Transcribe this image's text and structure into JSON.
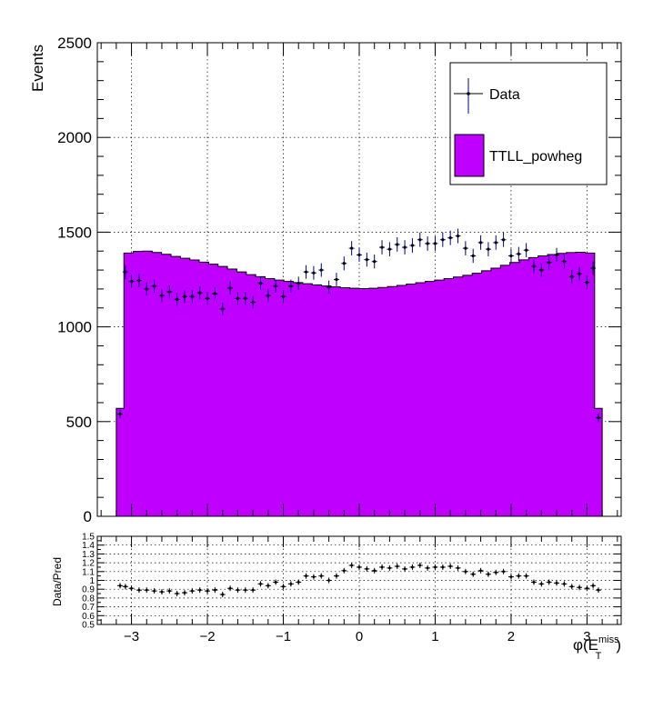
{
  "chart_data": [
    {
      "type": "histogram",
      "ylabel": "Events",
      "ylim": [
        0,
        2500
      ],
      "xlim": [
        -3.45,
        3.45
      ],
      "y_ticks": [
        "0",
        "500",
        "1000",
        "1500",
        "2000",
        "2500"
      ],
      "grid": true,
      "legend": {
        "position": "top-right",
        "entries": [
          "Data",
          "TTLL_powheg"
        ]
      },
      "colors": {
        "mc_fill": "#bf00ff",
        "data_marker": "#000000",
        "data_error": "#00008b"
      },
      "mc": {
        "name": "TTLL_powheg",
        "bins": [
          {
            "x0": -3.2,
            "x1": -3.1,
            "y": 570
          },
          {
            "x0": -3.1,
            "x1": 3.1,
            "y": [
              1390,
              1398,
              1400,
              1393,
              1383,
              1372,
              1362,
              1353,
              1342,
              1331,
              1319,
              1305,
              1290,
              1276,
              1265,
              1255,
              1247,
              1240,
              1234,
              1228,
              1222,
              1216,
              1211,
              1207,
              1204,
              1202,
              1204,
              1208,
              1213,
              1219,
              1226,
              1233,
              1240,
              1247,
              1255,
              1263,
              1272,
              1283,
              1296,
              1310,
              1325,
              1340,
              1354,
              1366,
              1375,
              1382,
              1388,
              1392,
              1394,
              1390
            ]
          },
          {
            "x0": 3.1,
            "x1": 3.2,
            "y": 570
          }
        ]
      },
      "data": {
        "name": "Data",
        "points": [
          {
            "x": -3.15,
            "y": 540
          },
          {
            "x": -3.08,
            "y": 1290
          },
          {
            "x": -3.0,
            "y": 1240
          },
          {
            "x": -2.9,
            "y": 1245
          },
          {
            "x": -2.8,
            "y": 1200
          },
          {
            "x": -2.7,
            "y": 1215
          },
          {
            "x": -2.6,
            "y": 1165
          },
          {
            "x": -2.5,
            "y": 1185
          },
          {
            "x": -2.4,
            "y": 1145
          },
          {
            "x": -2.3,
            "y": 1160
          },
          {
            "x": -2.2,
            "y": 1160
          },
          {
            "x": -2.1,
            "y": 1180
          },
          {
            "x": -2.0,
            "y": 1150
          },
          {
            "x": -1.9,
            "y": 1175
          },
          {
            "x": -1.8,
            "y": 1095
          },
          {
            "x": -1.7,
            "y": 1205
          },
          {
            "x": -1.6,
            "y": 1150
          },
          {
            "x": -1.5,
            "y": 1150
          },
          {
            "x": -1.4,
            "y": 1130
          },
          {
            "x": -1.3,
            "y": 1230
          },
          {
            "x": -1.2,
            "y": 1165
          },
          {
            "x": -1.1,
            "y": 1215
          },
          {
            "x": -1.0,
            "y": 1160
          },
          {
            "x": -0.9,
            "y": 1215
          },
          {
            "x": -0.8,
            "y": 1230
          },
          {
            "x": -0.7,
            "y": 1290
          },
          {
            "x": -0.6,
            "y": 1285
          },
          {
            "x": -0.5,
            "y": 1300
          },
          {
            "x": -0.4,
            "y": 1210
          },
          {
            "x": -0.3,
            "y": 1250
          },
          {
            "x": -0.2,
            "y": 1335
          },
          {
            "x": -0.1,
            "y": 1415
          },
          {
            "x": 0.0,
            "y": 1380
          },
          {
            "x": 0.1,
            "y": 1355
          },
          {
            "x": 0.2,
            "y": 1345
          },
          {
            "x": 0.3,
            "y": 1420
          },
          {
            "x": 0.4,
            "y": 1410
          },
          {
            "x": 0.5,
            "y": 1435
          },
          {
            "x": 0.6,
            "y": 1420
          },
          {
            "x": 0.7,
            "y": 1430
          },
          {
            "x": 0.8,
            "y": 1460
          },
          {
            "x": 0.9,
            "y": 1440
          },
          {
            "x": 1.0,
            "y": 1440
          },
          {
            "x": 1.1,
            "y": 1460
          },
          {
            "x": 1.2,
            "y": 1470
          },
          {
            "x": 1.3,
            "y": 1480
          },
          {
            "x": 1.4,
            "y": 1415
          },
          {
            "x": 1.5,
            "y": 1375
          },
          {
            "x": 1.6,
            "y": 1445
          },
          {
            "x": 1.7,
            "y": 1410
          },
          {
            "x": 1.8,
            "y": 1445
          },
          {
            "x": 1.9,
            "y": 1460
          },
          {
            "x": 2.0,
            "y": 1375
          },
          {
            "x": 2.1,
            "y": 1385
          },
          {
            "x": 2.2,
            "y": 1405
          },
          {
            "x": 2.3,
            "y": 1320
          },
          {
            "x": 2.4,
            "y": 1300
          },
          {
            "x": 2.5,
            "y": 1340
          },
          {
            "x": 2.6,
            "y": 1380
          },
          {
            "x": 2.7,
            "y": 1345
          },
          {
            "x": 2.8,
            "y": 1265
          },
          {
            "x": 2.9,
            "y": 1280
          },
          {
            "x": 3.0,
            "y": 1235
          },
          {
            "x": 3.08,
            "y": 1310
          },
          {
            "x": 3.15,
            "y": 520
          }
        ]
      }
    },
    {
      "type": "scatter",
      "ylabel": "Data/Pred",
      "xlabel": "φ(E",
      "xlabel_super": "miss",
      "xlabel_sub": "T",
      "xlabel_close": ")",
      "ylim": [
        0.5,
        1.5
      ],
      "xlim": [
        -3.45,
        3.45
      ],
      "x_ticks": [
        "−3",
        "−2",
        "−1",
        "0",
        "1",
        "2",
        "3"
      ],
      "y_ticks": [
        "0.5",
        "0.6",
        "0.7",
        "0.8",
        "0.9",
        "1",
        "1.1",
        "1.2",
        "1.3",
        "1.4",
        "1.5"
      ],
      "grid": true,
      "points": [
        {
          "x": -3.15,
          "y": 0.94
        },
        {
          "x": -3.08,
          "y": 0.93
        },
        {
          "x": -3.0,
          "y": 0.91
        },
        {
          "x": -2.9,
          "y": 0.89
        },
        {
          "x": -2.8,
          "y": 0.89
        },
        {
          "x": -2.7,
          "y": 0.88
        },
        {
          "x": -2.6,
          "y": 0.87
        },
        {
          "x": -2.5,
          "y": 0.88
        },
        {
          "x": -2.4,
          "y": 0.85
        },
        {
          "x": -2.3,
          "y": 0.86
        },
        {
          "x": -2.2,
          "y": 0.88
        },
        {
          "x": -2.1,
          "y": 0.89
        },
        {
          "x": -2.0,
          "y": 0.88
        },
        {
          "x": -1.9,
          "y": 0.89
        },
        {
          "x": -1.8,
          "y": 0.84
        },
        {
          "x": -1.7,
          "y": 0.91
        },
        {
          "x": -1.6,
          "y": 0.89
        },
        {
          "x": -1.5,
          "y": 0.89
        },
        {
          "x": -1.4,
          "y": 0.89
        },
        {
          "x": -1.3,
          "y": 0.96
        },
        {
          "x": -1.2,
          "y": 0.94
        },
        {
          "x": -1.1,
          "y": 0.98
        },
        {
          "x": -1.0,
          "y": 0.93
        },
        {
          "x": -0.9,
          "y": 0.96
        },
        {
          "x": -0.8,
          "y": 0.98
        },
        {
          "x": -0.7,
          "y": 1.05
        },
        {
          "x": -0.6,
          "y": 1.04
        },
        {
          "x": -0.5,
          "y": 1.05
        },
        {
          "x": -0.4,
          "y": 1.0
        },
        {
          "x": -0.3,
          "y": 1.05
        },
        {
          "x": -0.2,
          "y": 1.11
        },
        {
          "x": -0.1,
          "y": 1.17
        },
        {
          "x": 0.0,
          "y": 1.15
        },
        {
          "x": 0.1,
          "y": 1.13
        },
        {
          "x": 0.2,
          "y": 1.11
        },
        {
          "x": 0.3,
          "y": 1.15
        },
        {
          "x": 0.4,
          "y": 1.14
        },
        {
          "x": 0.5,
          "y": 1.16
        },
        {
          "x": 0.6,
          "y": 1.13
        },
        {
          "x": 0.7,
          "y": 1.15
        },
        {
          "x": 0.8,
          "y": 1.17
        },
        {
          "x": 0.9,
          "y": 1.14
        },
        {
          "x": 1.0,
          "y": 1.15
        },
        {
          "x": 1.1,
          "y": 1.15
        },
        {
          "x": 1.2,
          "y": 1.16
        },
        {
          "x": 1.3,
          "y": 1.14
        },
        {
          "x": 1.4,
          "y": 1.1
        },
        {
          "x": 1.5,
          "y": 1.07
        },
        {
          "x": 1.6,
          "y": 1.11
        },
        {
          "x": 1.7,
          "y": 1.07
        },
        {
          "x": 1.8,
          "y": 1.09
        },
        {
          "x": 1.9,
          "y": 1.1
        },
        {
          "x": 2.0,
          "y": 1.04
        },
        {
          "x": 2.1,
          "y": 1.05
        },
        {
          "x": 2.2,
          "y": 1.05
        },
        {
          "x": 2.3,
          "y": 0.98
        },
        {
          "x": 2.4,
          "y": 0.96
        },
        {
          "x": 2.5,
          "y": 0.98
        },
        {
          "x": 2.6,
          "y": 0.97
        },
        {
          "x": 2.7,
          "y": 0.96
        },
        {
          "x": 2.8,
          "y": 0.93
        },
        {
          "x": 2.9,
          "y": 0.92
        },
        {
          "x": 3.0,
          "y": 0.91
        },
        {
          "x": 3.08,
          "y": 0.94
        },
        {
          "x": 3.15,
          "y": 0.89
        }
      ]
    }
  ]
}
